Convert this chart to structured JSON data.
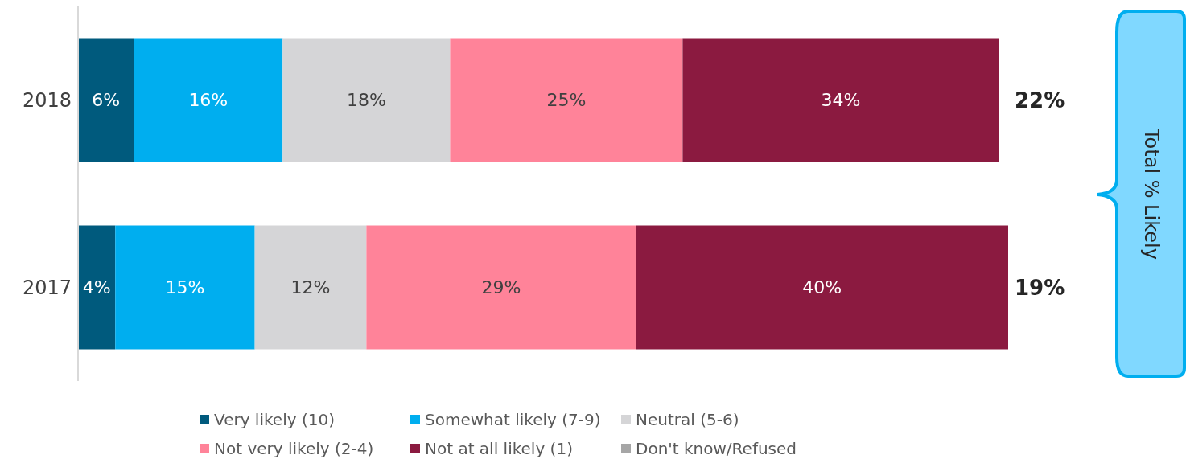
{
  "chart_data": {
    "type": "bar",
    "orientation": "horizontal",
    "stacked": true,
    "categories": [
      "2018",
      "2017"
    ],
    "series": [
      {
        "name": "Very likely (10)",
        "color": "#005a7d",
        "values": [
          6,
          4
        ],
        "value_labels": [
          "6%",
          "4%"
        ]
      },
      {
        "name": "Somewhat likely (7-9)",
        "color": "#00aeef",
        "values": [
          16,
          15
        ],
        "value_labels": [
          "16%",
          "15%"
        ]
      },
      {
        "name": "Neutral (5-6)",
        "color": "#d5d5d7",
        "values": [
          18,
          12
        ],
        "value_labels": [
          "18%",
          "12%"
        ]
      },
      {
        "name": "Not very likely (2-4)",
        "color": "#ff8399",
        "values": [
          25,
          29
        ],
        "value_labels": [
          "25%",
          "29%"
        ]
      },
      {
        "name": "Not at all likely (1)",
        "color": "#8b1a40",
        "values": [
          34,
          40
        ],
        "value_labels": [
          "34%",
          "40%"
        ]
      },
      {
        "name": "Don't know/Refused",
        "color": "#a6a6a6",
        "values": [
          null,
          null
        ]
      }
    ],
    "annotations": [
      "22%",
      "19%",
      "Total % Likely"
    ],
    "legend": "bottom"
  }
}
